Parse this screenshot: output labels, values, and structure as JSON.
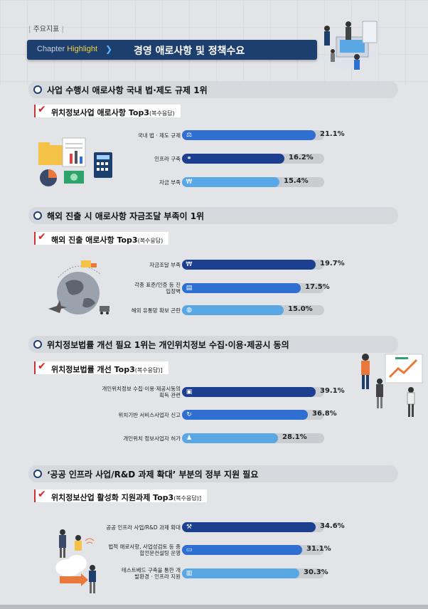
{
  "header": {
    "tag": "주요지표",
    "chapter": "Chapter",
    "highlight": "Highlight",
    "title": "경영 애로사항 및 정책수요"
  },
  "colors": {
    "navy": "#1d3f6e",
    "blue": "#2b5bb8",
    "mid": "#2e78c9",
    "light": "#5aa7e6"
  },
  "sections": [
    {
      "title": "사업 수행시 애로사항 국내 법·제도 규제 1위",
      "subtitle": "위치정보사업 애로사항 Top3",
      "subtitle_note": "(복수응답)",
      "rows": [
        {
          "label": "국내 법 · 제도 규제",
          "value": 21.1,
          "display": "21.1%",
          "color": "#2e6fd1",
          "icon": "gavel-icon"
        },
        {
          "label": "인프라 구축",
          "value": 16.2,
          "display": "16.2%",
          "color": "#1d3f8f",
          "icon": "network-icon"
        },
        {
          "label": "자금 부족",
          "value": 15.4,
          "display": "15.4%",
          "color": "#5aa7e6",
          "icon": "coin-icon"
        }
      ]
    },
    {
      "title": "해외 진출 시 애로사항 자금조달 부족이 1위",
      "subtitle": "해외 진출 애로사항 Top3",
      "subtitle_note": "(복수응답)",
      "rows": [
        {
          "label": "자금조달 부족",
          "value": 19.7,
          "display": "19.7%",
          "color": "#1d3f8f",
          "icon": "coin-icon"
        },
        {
          "label": "각종 표준/인증 등 진입장벽",
          "value": 17.5,
          "display": "17.5%",
          "color": "#2e6fd1",
          "icon": "document-icon"
        },
        {
          "label": "해외 유통망 확보 곤란",
          "value": 15.0,
          "display": "15.0%",
          "color": "#5aa7e6",
          "icon": "globe-icon"
        }
      ]
    },
    {
      "title": "위치정보법률 개선 필요 1위는 개인위치정보 수집·이용·제공시 동의",
      "subtitle": "위치정보법률 개선 Top3",
      "subtitle_note": "(복수응답)]",
      "rows": [
        {
          "label": "개인위치정보 수집·이용·제공시동의 획득 관련",
          "value": 39.1,
          "display": "39.1%",
          "color": "#1d3f8f",
          "icon": "screen-icon"
        },
        {
          "label": "위치기반 서비스사업자 신고",
          "value": 36.8,
          "display": "36.8%",
          "color": "#2e6fd1",
          "icon": "refresh-icon"
        },
        {
          "label": "개인위치 정보사업자 허가",
          "value": 28.1,
          "display": "28.1%",
          "color": "#5aa7e6",
          "icon": "user-icon"
        }
      ]
    },
    {
      "title": "‘공공 인프라 사업/R&D 과제 확대’ 부분의 정부 지원 필요",
      "subtitle": "위치정보산업 활성화 지원과제 Top3",
      "subtitle_note": "(복수응답)]",
      "rows": [
        {
          "label": "공공 인프라 사업/R&D 과제 확대",
          "value": 34.6,
          "display": "34.6%",
          "color": "#1d3f8f",
          "icon": "tools-icon"
        },
        {
          "label": "법적 애로사항, 사업성검토 등 종합전문컨설팅 운영",
          "value": 31.1,
          "display": "31.1%",
          "color": "#2e6fd1",
          "icon": "card-icon"
        },
        {
          "label": "테스트베드 구축을 통한 개발환경 · 인프라 지원",
          "value": 30.3,
          "display": "30.3%",
          "color": "#5aa7e6",
          "icon": "chart-icon"
        }
      ]
    }
  ]
}
